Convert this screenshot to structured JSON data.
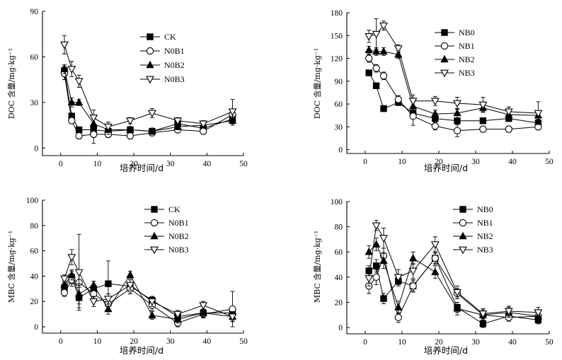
{
  "chart_data": [
    {
      "type": "line",
      "xlabel": "培养时间/d",
      "ylabel": "DOC 含量/mg·kg⁻¹",
      "xlim": [
        -5,
        50
      ],
      "ylim": [
        -5,
        90
      ],
      "xticks": [
        0,
        10,
        20,
        30,
        40,
        50
      ],
      "yticks": [
        0,
        30,
        60,
        90
      ],
      "legend": "top-right",
      "x": [
        1,
        3,
        5,
        9,
        13,
        19,
        25,
        32,
        39,
        47
      ],
      "series": [
        {
          "name": "CK",
          "marker": "square-filled",
          "values": [
            51,
            21,
            12,
            12,
            11,
            12,
            11,
            16,
            13,
            19
          ],
          "err": [
            3,
            2,
            1,
            2,
            2,
            2,
            2,
            2,
            2,
            3
          ]
        },
        {
          "name": "N0B1",
          "marker": "circle-open",
          "values": [
            49,
            18,
            8,
            9,
            9,
            8,
            10,
            12,
            11,
            22
          ],
          "err": [
            4,
            2,
            2,
            6,
            2,
            2,
            2,
            2,
            2,
            3
          ]
        },
        {
          "name": "N0B2",
          "marker": "triangle-filled",
          "values": [
            52,
            30,
            30,
            16,
            12,
            12,
            11,
            14,
            15,
            18
          ],
          "err": [
            3,
            3,
            2,
            3,
            3,
            2,
            2,
            2,
            2,
            3
          ]
        },
        {
          "name": "N0B3",
          "marker": "triangle-open",
          "values": [
            68,
            52,
            44,
            20,
            14,
            18,
            23,
            18,
            16,
            24
          ],
          "err": [
            6,
            5,
            4,
            5,
            3,
            2,
            3,
            2,
            2,
            8
          ]
        }
      ]
    },
    {
      "type": "line",
      "xlabel": "培养时间/d",
      "ylabel": "DOC 含量/mg·kg⁻¹",
      "xlim": [
        -5,
        50
      ],
      "ylim": [
        -5,
        180
      ],
      "xticks": [
        0,
        10,
        20,
        30,
        40,
        50
      ],
      "yticks": [
        0,
        30,
        60,
        90,
        120,
        150,
        180
      ],
      "legend": "top-right",
      "x": [
        1,
        3,
        5,
        9,
        13,
        19,
        25,
        32,
        39,
        47
      ],
      "series": [
        {
          "name": "NB0",
          "marker": "square-filled",
          "values": [
            101,
            84,
            54,
            62,
            48,
            41,
            38,
            38,
            41,
            35
          ],
          "err": [
            3,
            3,
            4,
            4,
            4,
            4,
            4,
            4,
            4,
            4
          ]
        },
        {
          "name": "NB1",
          "marker": "circle-open",
          "values": [
            120,
            107,
            97,
            66,
            44,
            31,
            25,
            27,
            27,
            30
          ],
          "err": [
            5,
            5,
            5,
            5,
            12,
            5,
            8,
            4,
            4,
            4
          ]
        },
        {
          "name": "NB2",
          "marker": "triangle-filled",
          "values": [
            131,
            129,
            129,
            125,
            57,
            47,
            48,
            55,
            46,
            45
          ],
          "err": [
            5,
            5,
            5,
            5,
            5,
            5,
            6,
            5,
            5,
            5
          ]
        },
        {
          "name": "NB3",
          "marker": "triangle-open",
          "values": [
            149,
            152,
            163,
            133,
            64,
            64,
            61,
            59,
            50,
            48
          ],
          "err": [
            8,
            20,
            6,
            5,
            8,
            6,
            8,
            10,
            6,
            15
          ]
        }
      ]
    },
    {
      "type": "line",
      "xlabel": "培养时间/d",
      "ylabel": "MBC 含量/mg·kg⁻¹",
      "xlim": [
        -5,
        50
      ],
      "ylim": [
        -5,
        100
      ],
      "xticks": [
        0,
        10,
        20,
        30,
        40,
        50
      ],
      "yticks": [
        0,
        20,
        40,
        60,
        80,
        100
      ],
      "legend": "top-right",
      "x": [
        1,
        3,
        5,
        9,
        13,
        19,
        25,
        32,
        39,
        47
      ],
      "series": [
        {
          "name": "CK",
          "marker": "square-filled",
          "values": [
            31,
            39,
            23,
            30,
            34,
            32,
            21,
            8,
            11,
            11
          ],
          "err": [
            3,
            5,
            8,
            3,
            18,
            3,
            3,
            3,
            3,
            3
          ]
        },
        {
          "name": "N0B1",
          "marker": "circle-open",
          "values": [
            27,
            37,
            35,
            26,
            18,
            30,
            17,
            3,
            10,
            14
          ],
          "err": [
            3,
            5,
            8,
            4,
            5,
            4,
            4,
            3,
            3,
            14
          ]
        },
        {
          "name": "N0B2",
          "marker": "triangle-filled",
          "values": [
            33,
            41,
            26,
            33,
            14,
            41,
            9,
            6,
            11,
            8
          ],
          "err": [
            3,
            4,
            8,
            3,
            4,
            3,
            3,
            3,
            3,
            3
          ]
        },
        {
          "name": "N0B3",
          "marker": "triangle-open",
          "values": [
            38,
            55,
            43,
            20,
            22,
            33,
            20,
            10,
            17,
            8
          ],
          "err": [
            3,
            6,
            30,
            4,
            4,
            4,
            4,
            3,
            3,
            4
          ]
        }
      ]
    },
    {
      "type": "line",
      "xlabel": "培养时间/d",
      "ylabel": "MBC 含量/mg·kg⁻¹",
      "xlim": [
        -5,
        50
      ],
      "ylim": [
        -5,
        100
      ],
      "xticks": [
        0,
        10,
        20,
        30,
        40,
        50
      ],
      "yticks": [
        0,
        20,
        40,
        60,
        80,
        100
      ],
      "legend": "top-right",
      "x": [
        1,
        3,
        5,
        9,
        13,
        19,
        25,
        32,
        39,
        47
      ],
      "series": [
        {
          "name": "NB0",
          "marker": "square-filled",
          "values": [
            45,
            49,
            23,
            37,
            33,
            55,
            16,
            3,
            9,
            6
          ],
          "err": [
            4,
            5,
            4,
            4,
            4,
            4,
            4,
            3,
            3,
            3
          ]
        },
        {
          "name": "NB1",
          "marker": "circle-open",
          "values": [
            33,
            40,
            57,
            8,
            33,
            55,
            27,
            10,
            8,
            9
          ],
          "err": [
            6,
            6,
            6,
            4,
            5,
            5,
            4,
            3,
            3,
            3
          ]
        },
        {
          "name": "NB2",
          "marker": "triangle-filled",
          "values": [
            60,
            66,
            53,
            16,
            55,
            44,
            15,
            10,
            12,
            9
          ],
          "err": [
            5,
            5,
            6,
            5,
            5,
            5,
            5,
            4,
            4,
            4
          ]
        },
        {
          "name": "NB3",
          "marker": "triangle-open",
          "values": [
            39,
            81,
            71,
            40,
            45,
            66,
            28,
            11,
            13,
            12
          ],
          "err": [
            6,
            4,
            8,
            6,
            6,
            6,
            5,
            4,
            4,
            4
          ]
        }
      ]
    }
  ]
}
